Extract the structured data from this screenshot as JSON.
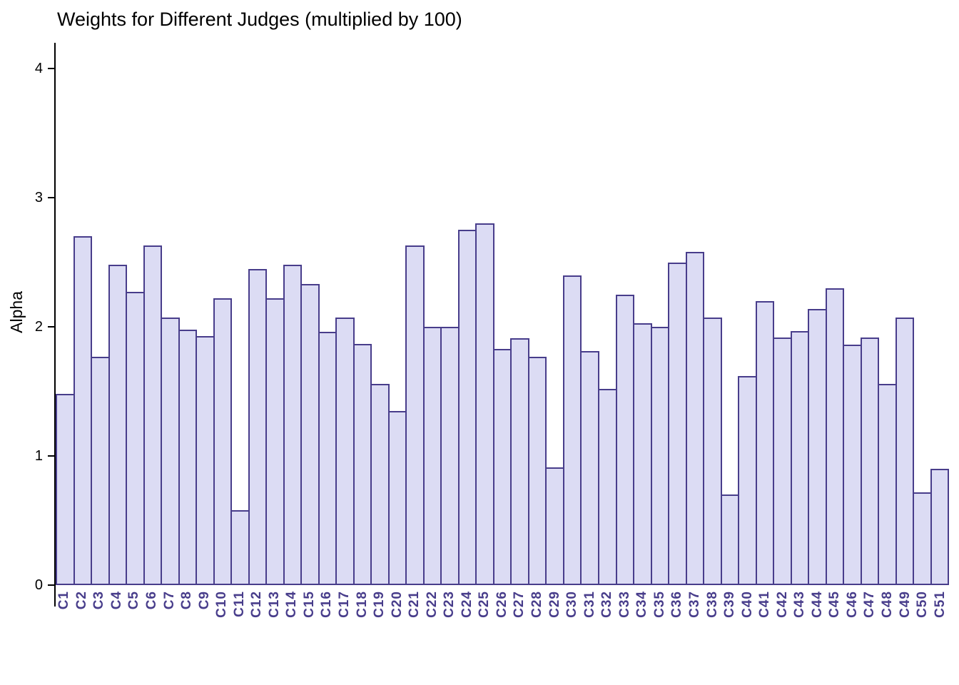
{
  "chart_data": {
    "type": "bar",
    "title": "Weights for Different Judges (multiplied by 100)",
    "xlabel": "",
    "ylabel": "Alpha",
    "ylim": [
      0,
      4.2
    ],
    "yticks": [
      0,
      1,
      2,
      3,
      4
    ],
    "grid": false,
    "legend": "none",
    "bar_fill": "#dcdcf4",
    "bar_border": "#483d8b",
    "xtick_color": "#483d8b",
    "categories": [
      "C1",
      "C2",
      "C3",
      "C4",
      "C5",
      "C6",
      "C7",
      "C8",
      "C9",
      "C10",
      "C11",
      "C12",
      "C13",
      "C14",
      "C15",
      "C16",
      "C17",
      "C18",
      "C19",
      "C20",
      "C21",
      "C22",
      "C23",
      "C24",
      "C25",
      "C26",
      "C27",
      "C28",
      "C29",
      "C30",
      "C31",
      "C32",
      "C33",
      "C34",
      "C35",
      "C36",
      "C37",
      "C38",
      "C39",
      "C40",
      "C41",
      "C42",
      "C43",
      "C44",
      "C45",
      "C46",
      "C47",
      "C48",
      "C49",
      "C50",
      "C51"
    ],
    "values": [
      1.48,
      2.7,
      1.77,
      2.48,
      2.27,
      2.63,
      2.07,
      1.98,
      1.93,
      2.22,
      0.58,
      2.45,
      2.22,
      2.48,
      2.33,
      1.96,
      2.07,
      1.87,
      1.56,
      1.35,
      2.63,
      2.0,
      2.0,
      2.75,
      2.8,
      1.83,
      1.91,
      1.77,
      0.91,
      2.4,
      1.81,
      1.52,
      2.25,
      2.03,
      2.0,
      2.5,
      2.58,
      2.07,
      0.7,
      1.62,
      2.2,
      1.92,
      1.97,
      2.14,
      2.3,
      1.86,
      1.92,
      1.56,
      2.07,
      0.72,
      0.9
    ]
  }
}
